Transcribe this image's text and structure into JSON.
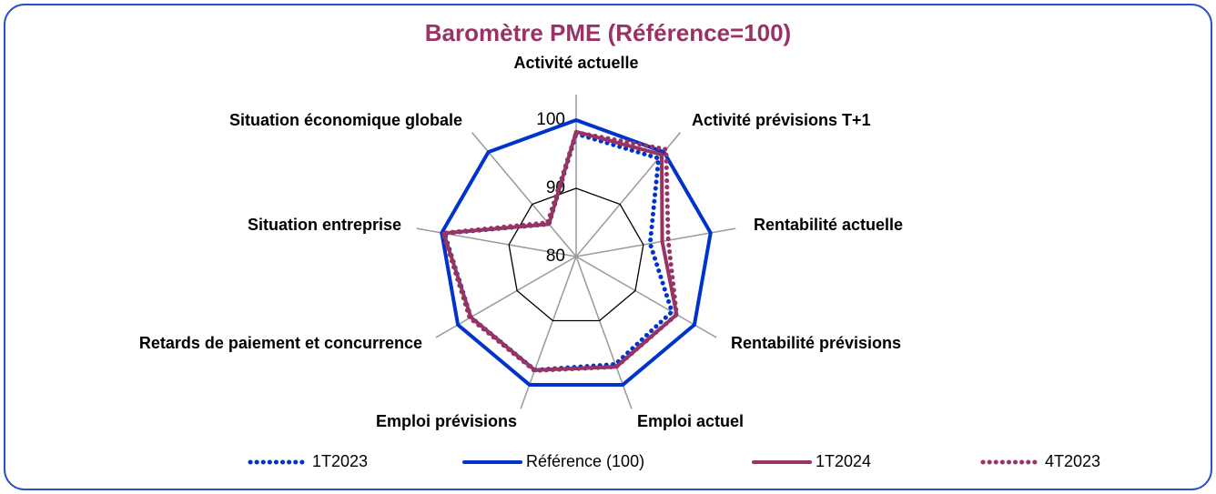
{
  "chart_data": {
    "type": "radar",
    "title": "Baromètre PME (Référence=100)",
    "categories": [
      "Activité actuelle",
      "Activité prévisions T+1",
      "Rentabilité actuelle",
      "Rentabilité prévisions",
      "Emploi actuel",
      "Emploi prévisions",
      "Retards de paiement et concurrence",
      "Situation entreprise",
      "Situation économique globale"
    ],
    "rlim": [
      80,
      100
    ],
    "rticks": [
      80,
      90,
      100
    ],
    "series": [
      {
        "name": "1T2023",
        "color": "#0033cc",
        "dash": "dotted",
        "values": [
          98,
          98.8,
          91,
          96.2,
          96.8,
          97.7,
          97.8,
          99.6,
          86.2
        ]
      },
      {
        "name": "Référence (100)",
        "color": "#0033cc",
        "dash": "solid",
        "values": [
          100,
          100,
          100,
          100,
          100,
          100,
          100,
          100,
          100
        ]
      },
      {
        "name": "1T2024",
        "color": "#963464",
        "dash": "solid",
        "values": [
          98.3,
          99.5,
          92.8,
          97,
          97.2,
          97.7,
          97.8,
          99.7,
          86.2
        ]
      },
      {
        "name": "4T2023",
        "color": "#963464",
        "dash": "dotted",
        "values": [
          98.2,
          100.5,
          93.7,
          97,
          97.2,
          97.8,
          98,
          99.8,
          86.5
        ]
      }
    ]
  }
}
